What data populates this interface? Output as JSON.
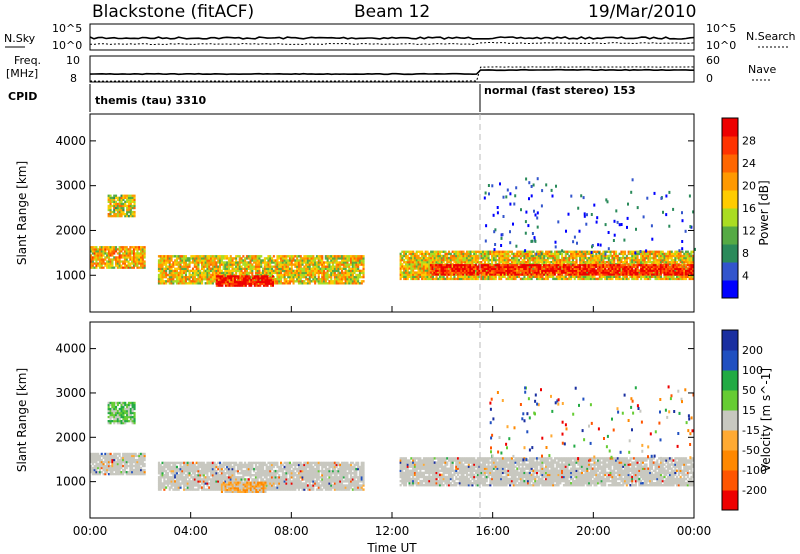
{
  "header": {
    "station": "Blackstone (fitACF)",
    "beam": "Beam 12",
    "date": "19/Mar/2010"
  },
  "left_labels": {
    "nsky": "N.Sky",
    "freq": "Freq.",
    "freq_unit": "[MHz]",
    "cpid": "CPID"
  },
  "right_labels": {
    "nsearch": "N.Search",
    "nave": "Nave"
  },
  "nsky_ticks": {
    "top": "10^5",
    "bottom": "10^0"
  },
  "freq_ticks": {
    "top": "10",
    "bottom": "8"
  },
  "nave_ticks": {
    "top": "60",
    "bottom": "0"
  },
  "cpid_segments": [
    {
      "label": "themis (tau) 3310"
    },
    {
      "label": "normal (fast stereo) 153"
    }
  ],
  "chart_data": [
    {
      "type": "heatmap",
      "name_field": "Power",
      "xlabel": "Time UT",
      "ylabel": "Slant Range [km]",
      "xlim_hours": [
        0,
        24
      ],
      "ylim_km": [
        180,
        4600
      ],
      "x_ticks": [
        "00:00",
        "04:00",
        "08:00",
        "12:00",
        "16:00",
        "20:00",
        "00:00"
      ],
      "y_ticks": [
        1000,
        2000,
        3000,
        4000
      ],
      "colorbar": {
        "label": "Power [dB]",
        "ticks": [
          "4",
          "8",
          "12",
          "16",
          "20",
          "24",
          "28"
        ],
        "colors": [
          "#0000ff",
          "#3355cc",
          "#2a8a5a",
          "#55aa44",
          "#aadd22",
          "#ffcc00",
          "#ff9900",
          "#ff6600",
          "#ff3300",
          "#ee0000"
        ]
      },
      "cpid_change_hour": 15.6,
      "regions": [
        {
          "t0": 0.0,
          "t1": 2.2,
          "r0": 1150,
          "r1": 1650,
          "level": 0.6
        },
        {
          "t0": 0.7,
          "t1": 1.8,
          "r0": 2300,
          "r1": 2800,
          "level": 0.5
        },
        {
          "t0": 2.7,
          "t1": 10.9,
          "r0": 800,
          "r1": 1450,
          "level": 0.55
        },
        {
          "t0": 5.0,
          "t1": 7.3,
          "r0": 750,
          "r1": 1000,
          "level": 0.95
        },
        {
          "t0": 12.3,
          "t1": 24.0,
          "r0": 900,
          "r1": 1550,
          "level": 0.55
        },
        {
          "t0": 13.5,
          "t1": 24.0,
          "r0": 1000,
          "r1": 1250,
          "level": 0.9
        }
      ]
    },
    {
      "type": "heatmap",
      "name_field": "Velocity",
      "xlabel": "Time UT",
      "ylabel": "Slant Range [km]",
      "xlim_hours": [
        0,
        24
      ],
      "ylim_km": [
        180,
        4600
      ],
      "x_ticks": [
        "00:00",
        "04:00",
        "08:00",
        "12:00",
        "16:00",
        "20:00",
        "00:00"
      ],
      "y_ticks": [
        1000,
        2000,
        3000,
        4000
      ],
      "colorbar": {
        "label": "Velocity [m s^-1]",
        "ticks": [
          "200",
          "100",
          "50",
          "15",
          "-15",
          "-50",
          "-100",
          "-200"
        ],
        "colors": [
          "#1a2fa0",
          "#2050c0",
          "#22aa44",
          "#66cc33",
          "#c8c8c0",
          "#ffaa33",
          "#ff8800",
          "#ff5500",
          "#ee0000"
        ]
      },
      "cpid_change_hour": 15.6,
      "regions": [
        {
          "t0": 0.0,
          "t1": 2.2,
          "r0": 1150,
          "r1": 1650,
          "level": "ground"
        },
        {
          "t0": 0.7,
          "t1": 1.8,
          "r0": 2300,
          "r1": 2800,
          "level": "positive"
        },
        {
          "t0": 2.7,
          "t1": 10.9,
          "r0": 800,
          "r1": 1450,
          "level": "ground"
        },
        {
          "t0": 5.2,
          "t1": 7.0,
          "r0": 750,
          "r1": 1000,
          "level": "negative"
        },
        {
          "t0": 12.3,
          "t1": 24.0,
          "r0": 900,
          "r1": 1550,
          "level": "ground"
        }
      ]
    }
  ]
}
